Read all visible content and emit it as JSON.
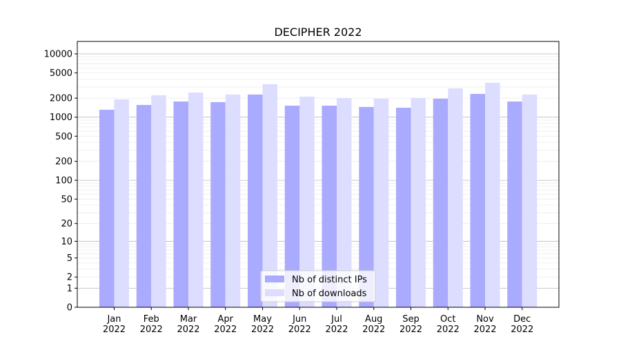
{
  "chart_data": {
    "type": "bar",
    "title": "DECIPHER 2022",
    "xlabel": "",
    "ylabel": "",
    "yscale": "log(1+y)",
    "ylim": [
      0,
      15700
    ],
    "grid": true,
    "legend_placement": "bottom-center",
    "categories": [
      "Jan\n2022",
      "Feb\n2022",
      "Mar\n2022",
      "Apr\n2022",
      "May\n2022",
      "Jun\n2022",
      "Jul\n2022",
      "Aug\n2022",
      "Sep\n2022",
      "Oct\n2022",
      "Nov\n2022",
      "Dec\n2022"
    ],
    "y_ticks": [
      0,
      1,
      2,
      5,
      10,
      20,
      50,
      100,
      200,
      500,
      1000,
      2000,
      5000,
      10000
    ],
    "series": [
      {
        "name": "Nb of distinct IPs",
        "color": "#aaaaff",
        "values": [
          1310,
          1560,
          1770,
          1730,
          2280,
          1520,
          1520,
          1450,
          1410,
          1960,
          2330,
          1770
        ]
      },
      {
        "name": "Nb of downloads",
        "color": "#ddddff",
        "values": [
          1910,
          2220,
          2450,
          2280,
          3320,
          2110,
          2000,
          1960,
          2000,
          2850,
          3490,
          2280
        ]
      }
    ]
  }
}
